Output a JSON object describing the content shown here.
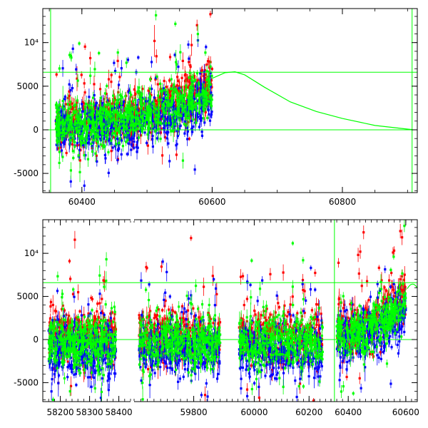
{
  "chart_data": [
    {
      "type": "scatter",
      "title": "",
      "xlabel": "",
      "ylabel": "",
      "xlim": [
        60340,
        60915
      ],
      "ylim": [
        -7200,
        13900
      ],
      "xticks": [
        "60400",
        "60600",
        "60800"
      ],
      "yticks": [
        "-5000",
        "0",
        "5000",
        "10⁴"
      ],
      "ytick_values": [
        -5000,
        0,
        5000,
        10000
      ],
      "xtick_values": [
        60400,
        60600,
        60800
      ],
      "hlines": [
        0,
        6600
      ],
      "vlines": [
        60352,
        60907
      ],
      "series": [
        {
          "color": "#ff0000",
          "x_range": [
            60360,
            60600
          ],
          "trend": "rising",
          "center_start": 800,
          "center_end": 5200
        },
        {
          "color": "#0000ff",
          "x_range": [
            60360,
            60600
          ],
          "trend": "rising",
          "center_start": 0,
          "center_end": 3500
        },
        {
          "color": "#00ff00",
          "x_range": [
            60360,
            60600
          ],
          "trend": "rising",
          "center_start": 500,
          "center_end": 4600
        }
      ],
      "model_curve": {
        "color": "#00ff00",
        "x": [
          60600,
          60620,
          60635,
          60650,
          60680,
          60720,
          60760,
          60800,
          60850,
          60900,
          60907
        ],
        "y": [
          5900,
          6550,
          6650,
          6300,
          4900,
          3200,
          2100,
          1300,
          500,
          80,
          30
        ]
      },
      "grid": false,
      "legend": "none"
    },
    {
      "type": "scatter",
      "title": "",
      "xlabel": "",
      "ylabel": "",
      "panels": [
        {
          "xlim": [
            58140,
            58440
          ],
          "xticks": [
            "58200",
            "58300",
            "58400"
          ],
          "xtick_values": [
            58200,
            58300,
            58400
          ],
          "data_range": [
            58160,
            58390
          ]
        },
        {
          "xlim": [
            59620,
            59900
          ],
          "xticks": [
            "59800"
          ],
          "xtick_values": [
            59800
          ],
          "data_range": [
            59635,
            59880
          ]
        },
        {
          "xlim": [
            59900,
            60280
          ],
          "xticks": [
            "60000",
            "60200"
          ],
          "xtick_values": [
            60000,
            60200
          ],
          "data_range": [
            59945,
            60250
          ]
        },
        {
          "xlim": [
            60340,
            60640
          ],
          "xticks": [
            "60400",
            "60600"
          ],
          "xtick_values": [
            60400,
            60600
          ],
          "data_range": [
            60360,
            60600
          ]
        }
      ],
      "ylim": [
        -7200,
        13900
      ],
      "yticks": [
        "-5000",
        "0",
        "5000",
        "10⁴"
      ],
      "ytick_values": [
        -5000,
        0,
        5000,
        10000
      ],
      "hlines": [
        0,
        6600
      ],
      "vline_x": 60352,
      "series": [
        {
          "color": "#ff0000"
        },
        {
          "color": "#0000ff"
        },
        {
          "color": "#00ff00"
        }
      ],
      "grid": false,
      "legend": "none"
    }
  ]
}
